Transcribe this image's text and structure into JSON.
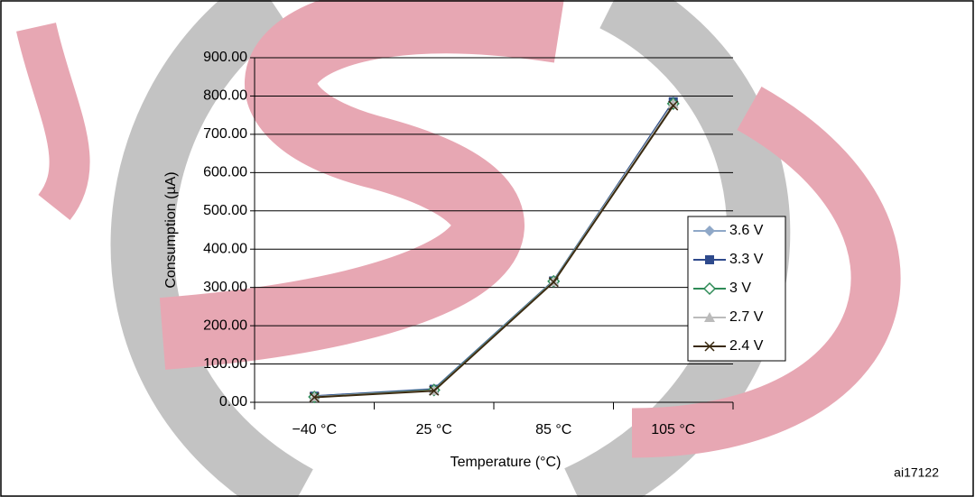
{
  "chart_data": {
    "type": "line",
    "y_label": "Consumption (µA)",
    "x_label": "Temperature (°C)",
    "annotation": "ai17122",
    "categories": [
      "−40 °C",
      "25 °C",
      "85 °C",
      "105 °C"
    ],
    "ylim": [
      0,
      900
    ],
    "yticks": [
      {
        "value": 0,
        "label": "0.00"
      },
      {
        "value": 100,
        "label": "100.00"
      },
      {
        "value": 200,
        "label": "200.00"
      },
      {
        "value": 300,
        "label": "300.00"
      },
      {
        "value": 400,
        "label": "400.00"
      },
      {
        "value": 500,
        "label": "500.00"
      },
      {
        "value": 600,
        "label": "600.00"
      },
      {
        "value": 700,
        "label": "700.00"
      },
      {
        "value": 800,
        "label": "800.00"
      },
      {
        "value": 900,
        "label": "900.00"
      }
    ],
    "grid": true,
    "legend": "right",
    "series": [
      {
        "name": "3.6 V",
        "color": "#8fa8c8",
        "marker": "diamond",
        "values": [
          16,
          35,
          318,
          785
        ]
      },
      {
        "name": "3.3 V",
        "color": "#2e4a8c",
        "marker": "square",
        "values": [
          16,
          34,
          317,
          785
        ]
      },
      {
        "name": "3 V",
        "color": "#2e8b57",
        "marker": "open-diamond",
        "values": [
          14,
          32,
          316,
          780
        ]
      },
      {
        "name": "2.7 V",
        "color": "#bbbbbb",
        "marker": "triangle",
        "values": [
          14,
          31,
          315,
          780
        ]
      },
      {
        "name": "2.4 V",
        "color": "#3a2a10",
        "marker": "cross",
        "values": [
          13,
          30,
          314,
          775
        ]
      }
    ]
  }
}
